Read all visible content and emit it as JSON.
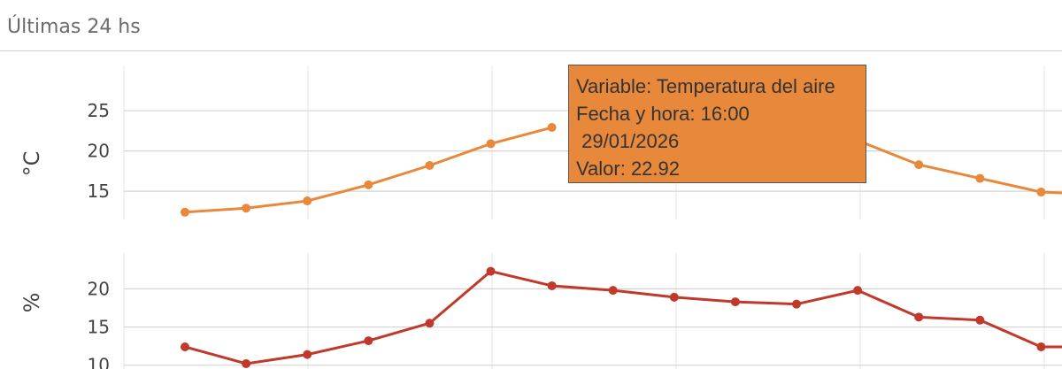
{
  "header": {
    "title": "Últimas 24 hs"
  },
  "colors": {
    "temperature": "#e8883a",
    "humidity": "#c0392b",
    "grid": "#d4d4d4",
    "axis_text": "#444444"
  },
  "chart_data": [
    {
      "type": "line",
      "ylabel": "°C",
      "yticks": [
        15,
        20,
        25
      ],
      "ylim": [
        11.5,
        30.5
      ],
      "series": [
        {
          "values": [
            12.4,
            12.9,
            13.8,
            15.8,
            18.2,
            20.9,
            22.92,
            null,
            null,
            null,
            null,
            21.3,
            18.3,
            16.6,
            14.9,
            14.6
          ]
        }
      ]
    },
    {
      "type": "line",
      "ylabel": "%",
      "yticks": [
        10,
        15,
        20
      ],
      "ylim": [
        9.5,
        24.8
      ],
      "series": [
        {
          "values": [
            12.4,
            10.2,
            11.4,
            13.2,
            15.5,
            22.3,
            20.4,
            19.8,
            18.9,
            18.3,
            18.0,
            19.8,
            16.3,
            15.9,
            12.4,
            12.4
          ]
        }
      ]
    }
  ],
  "tooltip": {
    "line1": "Variable: Temperatura del aire",
    "line2": "Fecha y hora: 16:00",
    "line3": " 29/01/2026",
    "line4": "Valor: 22.92"
  }
}
